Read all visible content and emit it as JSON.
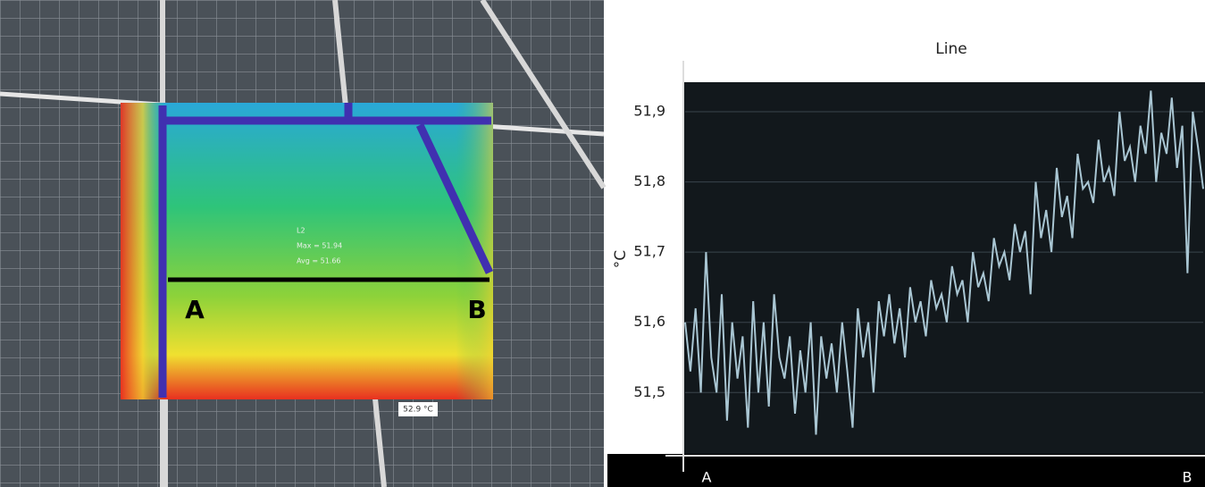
{
  "image_labels": {
    "point_a": "A",
    "point_b": "B",
    "region": "L2",
    "max": "Max = 51.94",
    "avg": "Avg = 51.66",
    "scale": "52.9 °C"
  },
  "chart_data": {
    "type": "line",
    "title": "Line",
    "y_label": "°C",
    "categories": [
      "A",
      null,
      null,
      null,
      null,
      null,
      null,
      null,
      null,
      null,
      null,
      null,
      null,
      null,
      null,
      null,
      null,
      null,
      null,
      null,
      null,
      null,
      null,
      null,
      null,
      null,
      null,
      null,
      null,
      null,
      null,
      null,
      null,
      null,
      null,
      null,
      null,
      null,
      null,
      null,
      null,
      null,
      null,
      null,
      null,
      null,
      null,
      null,
      null,
      null,
      null,
      null,
      null,
      null,
      null,
      null,
      null,
      null,
      null,
      null,
      null,
      null,
      null,
      null,
      null,
      null,
      null,
      null,
      null,
      null,
      null,
      null,
      null,
      null,
      null,
      null,
      null,
      null,
      null,
      null,
      null,
      null,
      null,
      null,
      null,
      null,
      null,
      null,
      null,
      null,
      null,
      null,
      null,
      null,
      null,
      null,
      null,
      null,
      null,
      "B"
    ],
    "series": [
      {
        "name": "Line",
        "color": "#a9c6d3",
        "values": [
          51.6,
          51.53,
          51.62,
          51.5,
          51.7,
          51.55,
          51.5,
          51.64,
          51.46,
          51.6,
          51.52,
          51.58,
          51.45,
          51.63,
          51.5,
          51.6,
          51.48,
          51.64,
          51.55,
          51.52,
          51.58,
          51.47,
          51.56,
          51.5,
          51.6,
          51.44,
          51.58,
          51.52,
          51.57,
          51.5,
          51.6,
          51.53,
          51.45,
          51.62,
          51.55,
          51.6,
          51.5,
          51.63,
          51.58,
          51.64,
          51.57,
          51.62,
          51.55,
          51.65,
          51.6,
          51.63,
          51.58,
          51.66,
          51.62,
          51.64,
          51.6,
          51.68,
          51.64,
          51.66,
          51.6,
          51.7,
          51.65,
          51.67,
          51.63,
          51.72,
          51.68,
          51.7,
          51.66,
          51.74,
          51.7,
          51.73,
          51.64,
          51.8,
          51.72,
          51.76,
          51.7,
          51.82,
          51.75,
          51.78,
          51.72,
          51.84,
          51.79,
          51.8,
          51.77,
          51.86,
          51.8,
          51.82,
          51.78,
          51.9,
          51.83,
          51.85,
          51.8,
          51.88,
          51.84,
          51.93,
          51.8,
          51.87,
          51.84,
          51.92,
          51.82,
          51.88,
          51.67,
          51.9,
          51.85,
          51.79
        ]
      }
    ],
    "ylim": [
      51.41,
      51.97
    ],
    "yticks": [
      {
        "value": 51.5,
        "label": "51,5"
      },
      {
        "value": 51.6,
        "label": "51,6"
      },
      {
        "value": 51.7,
        "label": "51,7"
      },
      {
        "value": 51.8,
        "label": "51,8"
      },
      {
        "value": 51.9,
        "label": "51,9"
      }
    ],
    "grid": true
  }
}
